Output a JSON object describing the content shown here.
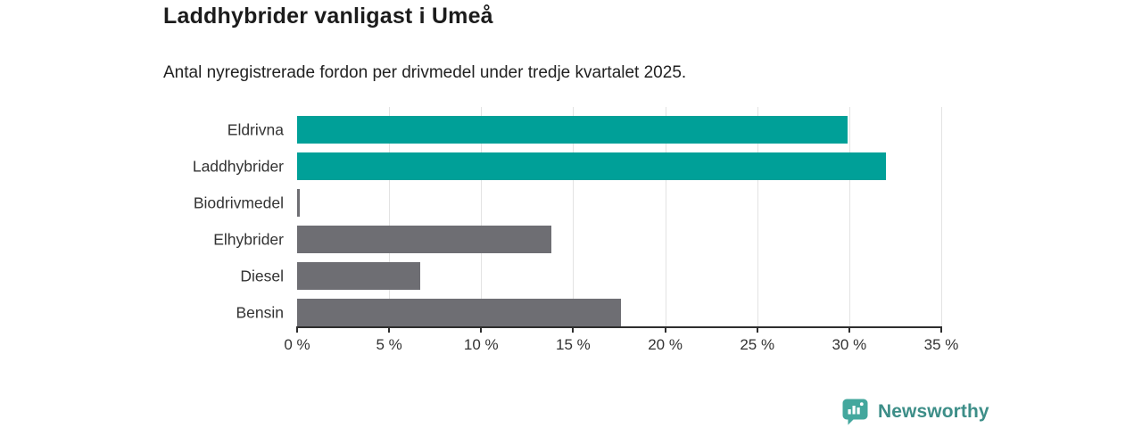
{
  "chart_data": {
    "type": "bar",
    "orientation": "horizontal",
    "title": "Laddhybrider vanligast i Umeå",
    "subtitle": "Antal nyregistrerade fordon per drivmedel under tredje kvartalet 2025.",
    "categories": [
      "Eldrivna",
      "Laddhybrider",
      "Biodrivmedel",
      "Elhybrider",
      "Diesel",
      "Bensin"
    ],
    "values": [
      29.9,
      32.0,
      0.15,
      13.8,
      6.7,
      17.6
    ],
    "unit": "%",
    "bar_colors": [
      "#00a098",
      "#00a098",
      "#6e6e73",
      "#6e6e73",
      "#6e6e73",
      "#6e6e73"
    ],
    "xlim": [
      0,
      35
    ],
    "x_ticks": [
      0,
      5,
      10,
      15,
      20,
      25,
      30,
      35
    ],
    "x_tick_labels": [
      "0 %",
      "5 %",
      "10 %",
      "15 %",
      "20 %",
      "25 %",
      "30 %",
      "35 %"
    ],
    "grid": "vertical-gridlines-on",
    "legend": "none"
  },
  "colors": {
    "accent_teal": "#00a098",
    "bar_gray": "#6e6e73",
    "grid_line": "#e3e3e3",
    "axis_line": "#2e2e2e",
    "title_text": "#1c1c1c",
    "label_text": "#333333",
    "brand_teal": "#3d8e88"
  },
  "footer": {
    "brand": "Newsworthy",
    "logo_icon": "newsworthy-bar-chart-bubble-icon"
  }
}
